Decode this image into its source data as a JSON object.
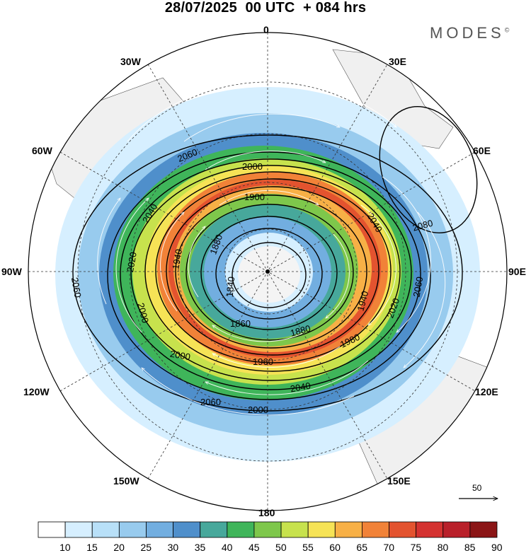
{
  "header": {
    "title": "28/07/2025  00 UTC  + 084 hrs",
    "logo": "MODES",
    "logo_mark": "©"
  },
  "map": {
    "projection": "south-polar-stereographic",
    "longitude_labels": [
      "0",
      "30E",
      "60E",
      "90E",
      "120E",
      "150E",
      "180",
      "150W",
      "120W",
      "90W",
      "60W",
      "30W"
    ],
    "contour_labels": [
      "2000",
      "2060",
      "2040",
      "1900",
      "1940",
      "1880",
      "1840",
      "1860",
      "1980",
      "2020",
      "2080",
      "1960"
    ],
    "vector_reference": "50"
  },
  "colorbar": {
    "ticks": [
      "10",
      "15",
      "20",
      "25",
      "30",
      "35",
      "40",
      "45",
      "50",
      "55",
      "60",
      "65",
      "70",
      "75",
      "80",
      "85",
      "90"
    ],
    "colors": [
      "#ffffff",
      "#d6efff",
      "#b8e0f8",
      "#98cbee",
      "#72aee0",
      "#4f8fcb",
      "#47a89b",
      "#3fb55a",
      "#7ec74b",
      "#c7e24d",
      "#f6e356",
      "#f7b046",
      "#f18238",
      "#e3532f",
      "#d43230",
      "#b9202a",
      "#8b1516"
    ]
  }
}
